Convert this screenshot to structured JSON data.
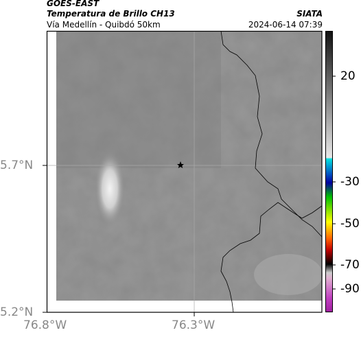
{
  "header": {
    "satellite": "GOES-EAST",
    "product": "Temperatura de Brillo CH13",
    "route": "Vía Medellín - Quibdó 50km",
    "agency": "SIATA",
    "timestamp": "2024-06-14 07:39"
  },
  "axes": {
    "lat_ticks": [
      "5.7°N",
      "5.2°N"
    ],
    "lon_ticks": [
      "76.8°W",
      "76.3°W"
    ]
  },
  "colorbar": {
    "ticks": [
      "20",
      "-30",
      "-50",
      "-70",
      "-90"
    ]
  }
}
